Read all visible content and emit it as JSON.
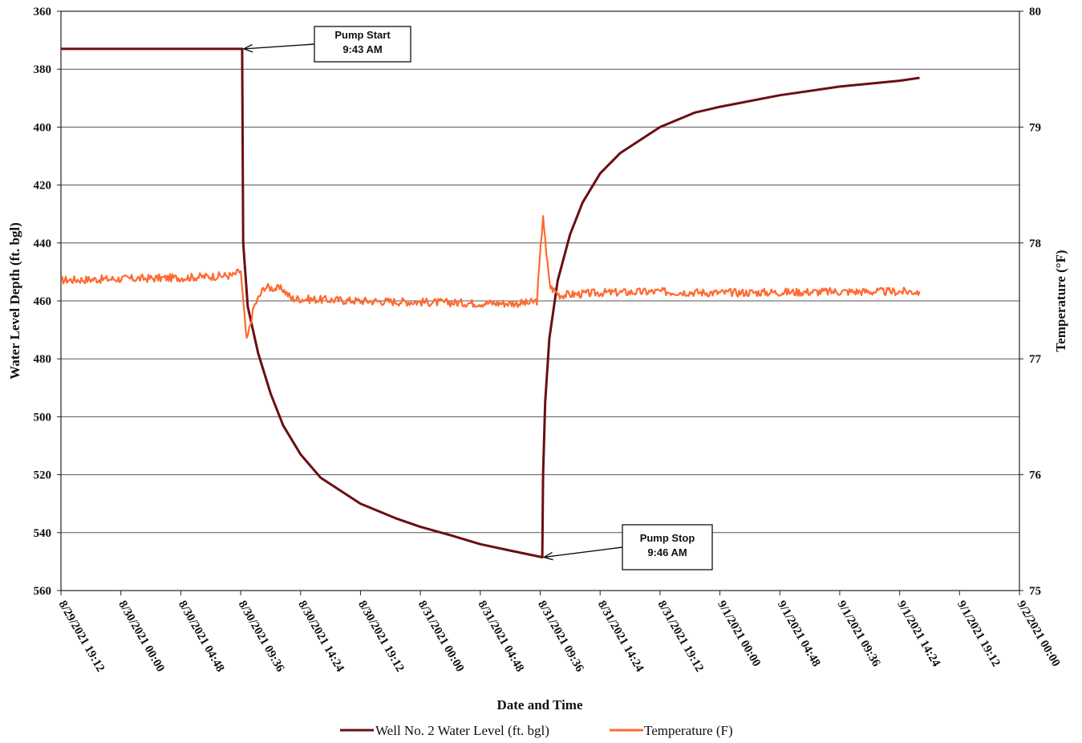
{
  "chart_data": {
    "type": "line",
    "xlabel": "Date and Time",
    "ylabel": "Water Level Depth (ft. bgl)",
    "y2label": "Temperature (°F)",
    "ylim": [
      360,
      560
    ],
    "y_inverted": true,
    "y_ticks": [
      "360",
      "380",
      "400",
      "420",
      "440",
      "460",
      "480",
      "500",
      "520",
      "540",
      "560"
    ],
    "y2lim": [
      75,
      80
    ],
    "y2_ticks": [
      "75",
      "76",
      "77",
      "78",
      "79",
      "80"
    ],
    "x_ticks": [
      "8/29/2021 19:12",
      "8/30/2021 00:00",
      "8/30/2021 04:48",
      "8/30/2021 09:36",
      "8/30/2021 14:24",
      "8/30/2021 19:12",
      "8/31/2021 00:00",
      "8/31/2021 04:48",
      "8/31/2021 09:36",
      "8/31/2021 14:24",
      "8/31/2021 19:12",
      "9/1/2021 00:00",
      "9/1/2021 04:48",
      "9/1/2021 09:36",
      "9/1/2021 14:24",
      "9/1/2021 19:12",
      "9/2/2021 00:00"
    ],
    "grid": "horizontal",
    "legend_position": "bottom",
    "series": [
      {
        "name": "Well No. 2 Water Level (ft. bgl)",
        "axis": "left",
        "color": "#6b0f12",
        "points": [
          [
            "8/29/2021 19:12",
            373
          ],
          [
            "8/30/2021 09:43",
            373
          ],
          [
            "8/30/2021 09:48",
            440
          ],
          [
            "8/30/2021 10:10",
            462
          ],
          [
            "8/30/2021 11:00",
            478
          ],
          [
            "8/30/2021 12:00",
            492
          ],
          [
            "8/30/2021 13:00",
            503
          ],
          [
            "8/30/2021 14:24",
            513
          ],
          [
            "8/30/2021 16:00",
            521
          ],
          [
            "8/30/2021 19:12",
            530
          ],
          [
            "8/30/2021 22:00",
            535
          ],
          [
            "8/31/2021 00:00",
            538
          ],
          [
            "8/31/2021 02:30",
            541
          ],
          [
            "8/31/2021 04:48",
            544
          ],
          [
            "8/31/2021 07:00",
            546
          ],
          [
            "8/31/2021 09:46",
            548.5
          ],
          [
            "8/31/2021 09:50",
            520
          ],
          [
            "8/31/2021 10:00",
            495
          ],
          [
            "8/31/2021 10:20",
            473
          ],
          [
            "8/31/2021 11:00",
            453
          ],
          [
            "8/31/2021 12:00",
            437
          ],
          [
            "8/31/2021 13:00",
            426
          ],
          [
            "8/31/2021 14:24",
            416
          ],
          [
            "8/31/2021 16:00",
            409
          ],
          [
            "8/31/2021 19:12",
            400
          ],
          [
            "8/31/2021 22:00",
            395
          ],
          [
            "9/1/2021 00:00",
            393
          ],
          [
            "9/1/2021 04:48",
            389
          ],
          [
            "9/1/2021 09:36",
            386
          ],
          [
            "9/1/2021 14:24",
            384
          ],
          [
            "9/1/2021 16:00",
            383
          ]
        ]
      },
      {
        "name": "Temperature (F)",
        "axis": "right",
        "color": "#ff6a30",
        "points": [
          [
            "8/29/2021 19:12",
            77.68
          ],
          [
            "8/30/2021 04:48",
            77.7
          ],
          [
            "8/30/2021 09:00",
            77.72
          ],
          [
            "8/30/2021 09:36",
            77.76
          ],
          [
            "8/30/2021 09:50",
            77.45
          ],
          [
            "8/30/2021 10:05",
            77.15
          ],
          [
            "8/30/2021 10:40",
            77.45
          ],
          [
            "8/30/2021 11:30",
            77.62
          ],
          [
            "8/30/2021 13:00",
            77.6
          ],
          [
            "8/30/2021 13:40",
            77.52
          ],
          [
            "8/30/2021 19:12",
            77.5
          ],
          [
            "8/31/2021 00:00",
            77.49
          ],
          [
            "8/31/2021 04:48",
            77.48
          ],
          [
            "8/31/2021 08:40",
            77.48
          ],
          [
            "8/31/2021 09:20",
            77.5
          ],
          [
            "8/31/2021 09:50",
            78.25
          ],
          [
            "8/31/2021 10:05",
            77.9
          ],
          [
            "8/31/2021 10:25",
            77.62
          ],
          [
            "8/31/2021 11:10",
            77.55
          ],
          [
            "8/31/2021 14:24",
            77.57
          ],
          [
            "8/31/2021 19:12",
            77.58
          ],
          [
            "9/1/2021 00:00",
            77.57
          ],
          [
            "9/1/2021 09:36",
            77.58
          ],
          [
            "9/1/2021 16:00",
            77.58
          ]
        ]
      }
    ],
    "annotations": [
      {
        "lines": [
          "Pump Start",
          "9:43 AM"
        ],
        "target": [
          "8/30/2021 09:43",
          373
        ]
      },
      {
        "lines": [
          "Pump Stop",
          "9:46 AM"
        ],
        "target": [
          "8/31/2021 09:46",
          548.5
        ]
      }
    ]
  }
}
